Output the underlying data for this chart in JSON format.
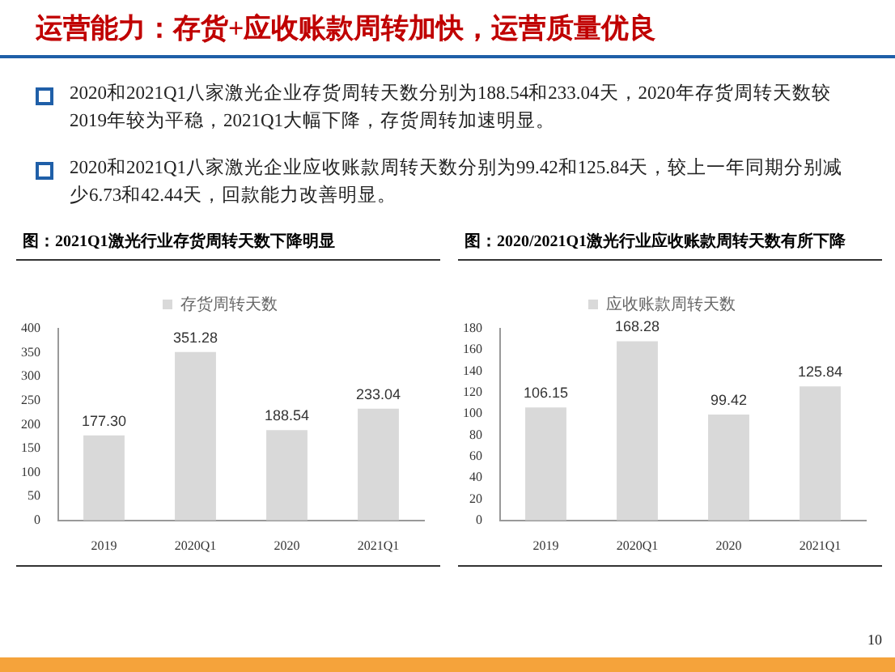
{
  "chart_data": [
    {
      "type": "other",
      "title": "运营能力：存货+应收账款周转加快，运营质量优良",
      "annotations": [
        "2020和2021Q1八家激光企业存货周转天数分别为188.54和233.04天，2020年存货周转天数较2019年较为平稳，2021Q1大幅下降，存货周转加速明显。",
        "2020和2021Q1八家激光企业应收账款周转天数分别为99.42和125.84天，较上一年同期分别减少6.73和42.44天，回款能力改善明显。",
        "10"
      ]
    },
    {
      "type": "bar",
      "title": "图：2021Q1激光行业存货周转天数下降明显",
      "categories": [
        "2019",
        "2020Q1",
        "2020",
        "2021Q1"
      ],
      "series": [
        {
          "name": "存货周转天数",
          "color": "#d9d9d9",
          "values": [
            177.3,
            351.28,
            188.54,
            233.04
          ],
          "value_labels": [
            "177.30",
            "351.28",
            "188.54",
            "233.04"
          ]
        }
      ],
      "ylim": [
        0,
        400
      ],
      "yticks": [
        0,
        50,
        100,
        150,
        200,
        250,
        300,
        350,
        400
      ],
      "grid": false,
      "legend": "top"
    },
    {
      "type": "bar",
      "title": "图：2020/2021Q1激光行业应收账款周转天数有所下降",
      "categories": [
        "2019",
        "2020Q1",
        "2020",
        "2021Q1"
      ],
      "series": [
        {
          "name": "应收账款周转天数",
          "color": "#d9d9d9",
          "values": [
            106.15,
            168.28,
            99.42,
            125.84
          ],
          "value_labels": [
            "106.15",
            "168.28",
            "99.42",
            "125.84"
          ]
        }
      ],
      "ylim": [
        0,
        180
      ],
      "yticks": [
        0,
        20,
        40,
        60,
        80,
        100,
        120,
        140,
        160,
        180
      ],
      "grid": false,
      "legend": "top"
    }
  ]
}
